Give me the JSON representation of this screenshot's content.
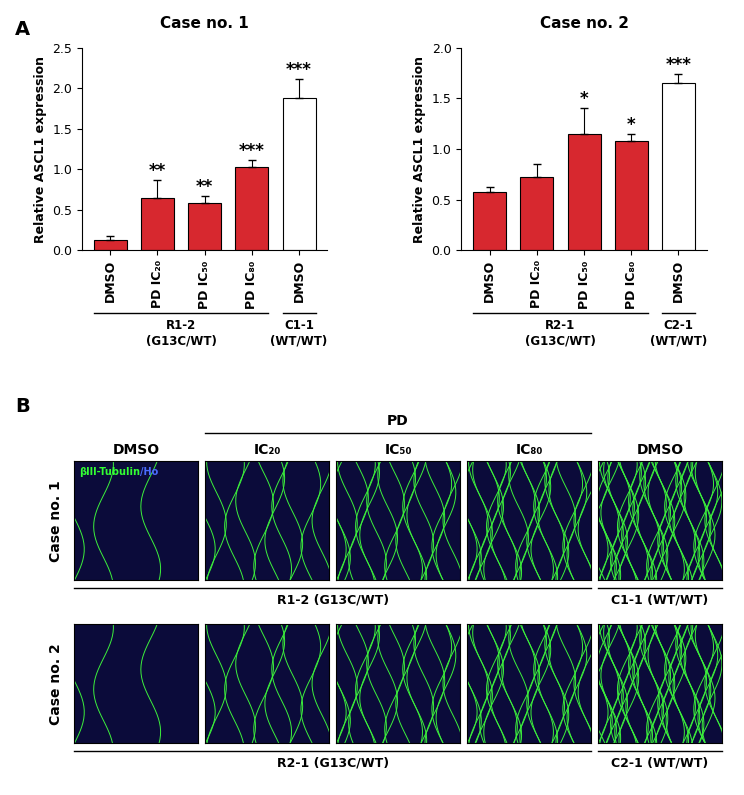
{
  "chart_data": [
    {
      "type": "bar",
      "panel_label": "A",
      "title": "Case no. 1",
      "y_label": "Relative ASCL1 expression",
      "categories": [
        "DMSO",
        "PD IC₂₀",
        "PD IC₅₀",
        "PD IC₈₀",
        "DMSO"
      ],
      "values": [
        0.13,
        0.65,
        0.58,
        1.03,
        1.88
      ],
      "errors": [
        0.05,
        0.22,
        0.09,
        0.08,
        0.23
      ],
      "significance": [
        null,
        "**",
        "**",
        "***",
        "***"
      ],
      "colors": [
        "#d7282f",
        "#d7282f",
        "#d7282f",
        "#d7282f",
        "#ffffff"
      ],
      "groups": [
        {
          "label": "R1-2\n(G13C/WT)",
          "size": 4
        },
        {
          "label": "C1-1\n(WT/WT)",
          "size": 1
        }
      ],
      "ylim": [
        0,
        2.5
      ],
      "yticks": [
        {
          "value": 0,
          "label": "0.0"
        },
        {
          "value": 0.5,
          "label": "0.5"
        },
        {
          "value": 1,
          "label": "1.0"
        },
        {
          "value": 1.5,
          "label": "1.5"
        },
        {
          "value": 2,
          "label": "2.0"
        },
        {
          "value": 2.5,
          "label": "2.5"
        }
      ]
    },
    {
      "type": "bar",
      "title": "Case no. 2",
      "y_label": "Relative ASCL1 expression",
      "categories": [
        "DMSO",
        "PD IC₂₀",
        "PD IC₅₀",
        "PD IC₈₀",
        "DMSO"
      ],
      "values": [
        0.58,
        0.72,
        1.15,
        1.08,
        1.65
      ],
      "errors": [
        0.05,
        0.13,
        0.26,
        0.07,
        0.09
      ],
      "significance": [
        null,
        null,
        "*",
        "*",
        "***"
      ],
      "colors": [
        "#d7282f",
        "#d7282f",
        "#d7282f",
        "#d7282f",
        "#ffffff"
      ],
      "groups": [
        {
          "label": "R2-1\n(G13C/WT)",
          "size": 4
        },
        {
          "label": "C2-1\n(WT/WT)",
          "size": 1
        }
      ],
      "ylim": [
        0,
        2.0
      ],
      "yticks": [
        {
          "value": 0,
          "label": "0.0"
        },
        {
          "value": 0.5,
          "label": "0.5"
        },
        {
          "value": 1,
          "label": "1.0"
        },
        {
          "value": 1.5,
          "label": "1.5"
        },
        {
          "value": 2,
          "label": "2.0"
        }
      ]
    }
  ],
  "image_panel": {
    "panel_label": "B",
    "stain_label": [
      {
        "text": "βIII-Tubulin",
        "color": "#33ff33"
      },
      {
        "text": "/Ho",
        "color": "#4a6cff"
      }
    ],
    "treatment_header": "PD",
    "column_headers": [
      "DMSO",
      "IC₂₀",
      "IC₅₀",
      "IC₈₀",
      "DMSO"
    ],
    "rows": [
      {
        "label": "Case no. 1",
        "groups": [
          {
            "label": "R1-2 (G13C/WT)",
            "size": 4
          },
          {
            "label": "C1-1 (WT/WT)",
            "size": 1
          }
        ]
      },
      {
        "label": "Case no. 2",
        "groups": [
          {
            "label": "R2-1 (G13C/WT)",
            "size": 4
          },
          {
            "label": "C2-1 (WT/WT)",
            "size": 1
          }
        ]
      }
    ]
  }
}
